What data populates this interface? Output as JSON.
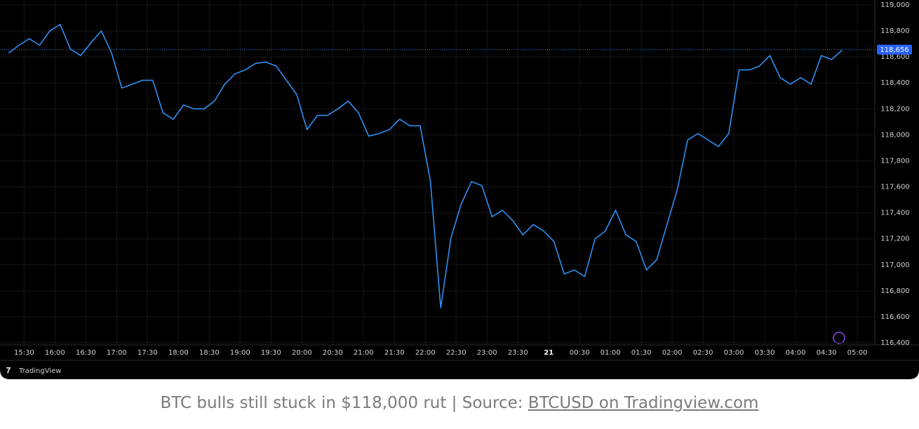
{
  "chart_data": {
    "type": "line",
    "x": [
      "15:15",
      "15:25",
      "15:35",
      "15:45",
      "15:55",
      "16:05",
      "16:15",
      "16:25",
      "16:35",
      "16:45",
      "16:55",
      "17:05",
      "17:15",
      "17:25",
      "17:35",
      "17:45",
      "17:55",
      "18:05",
      "18:15",
      "18:25",
      "18:35",
      "18:45",
      "18:55",
      "19:05",
      "19:15",
      "19:25",
      "19:35",
      "19:45",
      "19:55",
      "20:05",
      "20:15",
      "20:25",
      "20:35",
      "20:45",
      "20:55",
      "21:05",
      "21:15",
      "21:25",
      "21:35",
      "21:45",
      "21:55",
      "22:05",
      "22:15",
      "22:25",
      "22:35",
      "22:45",
      "22:55",
      "23:05",
      "23:15",
      "23:25",
      "23:35",
      "23:45",
      "23:55",
      "00:05",
      "00:15",
      "00:25",
      "00:35",
      "00:45",
      "00:55",
      "01:05",
      "01:15",
      "01:25",
      "01:35",
      "01:45",
      "01:55",
      "02:05",
      "02:15",
      "02:25",
      "02:35",
      "02:45",
      "02:55",
      "03:05",
      "03:15",
      "03:25",
      "03:35",
      "03:45",
      "03:55",
      "04:05",
      "04:15",
      "04:25",
      "04:35",
      "04:45"
    ],
    "series": [
      {
        "name": "BTCUSD",
        "color": "#2f8ff0",
        "values": [
          118630,
          118690,
          118740,
          118690,
          118800,
          118850,
          118660,
          118610,
          118710,
          118800,
          118630,
          118360,
          118390,
          118420,
          118420,
          118170,
          118120,
          118230,
          118200,
          118200,
          118260,
          118390,
          118470,
          118500,
          118550,
          118560,
          118530,
          118420,
          118310,
          118040,
          118150,
          118150,
          118200,
          118260,
          118170,
          117990,
          118010,
          118040,
          118120,
          118070,
          118070,
          117640,
          116670,
          117210,
          117470,
          117640,
          117610,
          117370,
          117420,
          117340,
          117230,
          117310,
          117260,
          117180,
          116930,
          116960,
          116910,
          117200,
          117260,
          117420,
          117230,
          117180,
          116960,
          117040,
          117310,
          117580,
          117960,
          118010,
          117960,
          117910,
          118010,
          118500,
          118500,
          118530,
          118610,
          118440,
          118390,
          118440,
          118390,
          118610,
          118580,
          118650
        ]
      }
    ],
    "xlim": [
      "15:12",
      "05:17"
    ],
    "xticks": [
      "15:30",
      "16:00",
      "16:30",
      "17:00",
      "17:30",
      "18:00",
      "18:30",
      "19:00",
      "19:30",
      "20:00",
      "20:30",
      "21:00",
      "21:30",
      "22:00",
      "22:30",
      "23:00",
      "23:30",
      {
        "value": "00:00",
        "label": "21"
      },
      "00:30",
      "01:00",
      "01:30",
      "02:00",
      "02:30",
      "03:00",
      "03:30",
      "04:00",
      "04:30",
      "05:00"
    ],
    "ylim": [
      116400,
      119000
    ],
    "yticks": [
      {
        "value": 116400,
        "label": "116,400"
      },
      {
        "value": 116600,
        "label": "116,600"
      },
      {
        "value": 116800,
        "label": "116,800"
      },
      {
        "value": 117000,
        "label": "117,000"
      },
      {
        "value": 117200,
        "label": "117,200"
      },
      {
        "value": 117400,
        "label": "117,400"
      },
      {
        "value": 117600,
        "label": "117,600"
      },
      {
        "value": 117800,
        "label": "117,800"
      },
      {
        "value": 118000,
        "label": "118,000"
      },
      {
        "value": 118200,
        "label": "118,200"
      },
      {
        "value": 118400,
        "label": "118,400"
      },
      {
        "value": 118600,
        "label": "118,600"
      },
      {
        "value": 118800,
        "label": "118,800"
      },
      {
        "value": 119000,
        "label": "119,000"
      }
    ],
    "price_line": {
      "value": 118656,
      "label": "118,656"
    },
    "grid": true,
    "brand": "TradingView",
    "caption": "BTC bulls still stuck in $118,000 rut | Source: ",
    "caption_link": "BTCUSD on Tradingview.com"
  }
}
